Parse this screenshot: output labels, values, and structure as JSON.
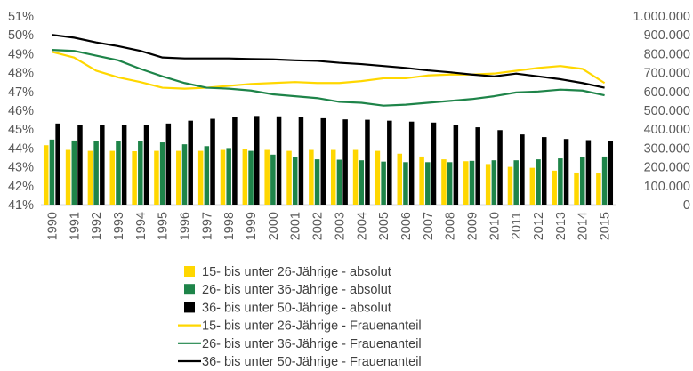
{
  "chart_data": {
    "type": "bar+line",
    "x": [
      "1990",
      "1991",
      "1992",
      "1993",
      "1994",
      "1995",
      "1996",
      "1997",
      "1998",
      "1999",
      "2000",
      "2001",
      "2002",
      "2003",
      "2004",
      "2005",
      "2006",
      "2007",
      "2008",
      "2009",
      "2010",
      "2011",
      "2012",
      "2013",
      "2014",
      "2015"
    ],
    "y_left": {
      "ticks": [
        "41%",
        "42%",
        "43%",
        "44%",
        "45%",
        "46%",
        "47%",
        "48%",
        "49%",
        "50%",
        "51%"
      ],
      "min": 41,
      "max": 51
    },
    "y_right": {
      "ticks": [
        "0",
        "100.000",
        "200.000",
        "300.000",
        "400.000",
        "500.000",
        "600.000",
        "700.000",
        "800.000",
        "900.000",
        "1.000.000"
      ],
      "min": 0,
      "max": 1000000
    },
    "grid": false,
    "legend_position": "bottom",
    "series": [
      {
        "name": "15- bis unter 26-Jährige - absolut",
        "type": "bar",
        "axis": "right",
        "color": "#FFD700",
        "values": [
          315000,
          290000,
          285000,
          285000,
          283000,
          285000,
          285000,
          285000,
          290000,
          295000,
          290000,
          285000,
          290000,
          290000,
          290000,
          285000,
          270000,
          255000,
          240000,
          230000,
          215000,
          200000,
          195000,
          180000,
          170000,
          165000
        ]
      },
      {
        "name": "26- bis unter 36-Jährige - absolut",
        "type": "bar",
        "axis": "right",
        "color": "#1E8449",
        "values": [
          345000,
          340000,
          338000,
          338000,
          335000,
          330000,
          320000,
          310000,
          300000,
          285000,
          265000,
          250000,
          240000,
          238000,
          235000,
          228000,
          225000,
          225000,
          225000,
          232000,
          235000,
          235000,
          240000,
          245000,
          250000,
          255000
        ]
      },
      {
        "name": "36- bis unter 50-Jährige - absolut",
        "type": "bar",
        "axis": "right",
        "color": "#000000",
        "values": [
          430000,
          420000,
          420000,
          420000,
          420000,
          430000,
          445000,
          455000,
          465000,
          470000,
          468000,
          465000,
          458000,
          452000,
          450000,
          445000,
          440000,
          435000,
          423000,
          410000,
          395000,
          372000,
          358000,
          348000,
          342000,
          335000
        ]
      },
      {
        "name": "15- bis unter 26-Jährige - Frauenanteil",
        "type": "line",
        "axis": "left",
        "color": "#FFD700",
        "values": [
          49.1,
          48.8,
          48.1,
          47.75,
          47.5,
          47.2,
          47.15,
          47.2,
          47.3,
          47.4,
          47.45,
          47.5,
          47.45,
          47.45,
          47.55,
          47.7,
          47.7,
          47.85,
          47.9,
          47.9,
          47.95,
          48.1,
          48.25,
          48.35,
          48.2,
          47.45
        ]
      },
      {
        "name": "26- bis unter 36-Jährige - Frauenanteil",
        "type": "line",
        "axis": "left",
        "color": "#1E8449",
        "values": [
          49.2,
          49.15,
          48.9,
          48.65,
          48.2,
          47.8,
          47.45,
          47.2,
          47.15,
          47.05,
          46.85,
          46.75,
          46.65,
          46.45,
          46.4,
          46.25,
          46.3,
          46.4,
          46.5,
          46.6,
          46.75,
          46.95,
          47.0,
          47.1,
          47.05,
          46.8
        ]
      },
      {
        "name": "36- bis unter 50-Jährige - Frauenanteil",
        "type": "line",
        "axis": "left",
        "color": "#000000",
        "values": [
          50.0,
          49.85,
          49.6,
          49.4,
          49.15,
          48.8,
          48.75,
          48.75,
          48.75,
          48.72,
          48.7,
          48.65,
          48.62,
          48.52,
          48.45,
          48.35,
          48.25,
          48.12,
          48.02,
          47.9,
          47.8,
          47.95,
          47.8,
          47.65,
          47.45,
          47.2
        ]
      }
    ]
  }
}
